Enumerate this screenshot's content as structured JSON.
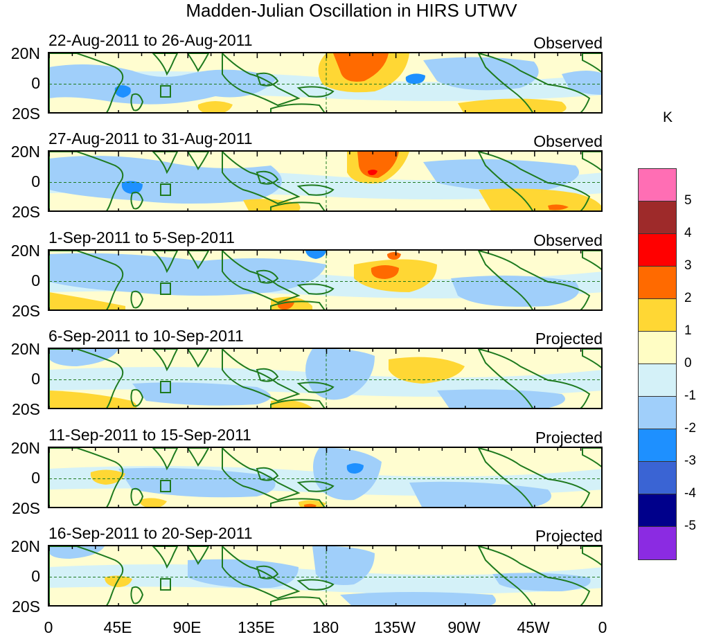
{
  "title": "Madden-Julian Oscillation in HIRS UTWV",
  "panels": [
    {
      "date": "22-Aug-2011 to 26-Aug-2011",
      "status": "Observed"
    },
    {
      "date": "27-Aug-2011 to 31-Aug-2011",
      "status": "Observed"
    },
    {
      "date": "1-Sep-2011 to 5-Sep-2011",
      "status": "Observed"
    },
    {
      "date": "6-Sep-2011 to 10-Sep-2011",
      "status": "Projected"
    },
    {
      "date": "11-Sep-2011 to 15-Sep-2011",
      "status": "Projected"
    },
    {
      "date": "16-Sep-2011 to 20-Sep-2011",
      "status": "Projected"
    }
  ],
  "lat_labels": {
    "north": "20N",
    "equator": "0",
    "south": "20S"
  },
  "lon_labels": [
    "0",
    "45E",
    "90E",
    "135E",
    "180",
    "135W",
    "90W",
    "45W",
    "0"
  ],
  "colorbar": {
    "unit": "K",
    "boxes_top_to_bottom": [
      {
        "color": "#ff6eb4"
      },
      {
        "color": "#9e2a2a"
      },
      {
        "color": "#ff0000"
      },
      {
        "color": "#ff6a00"
      },
      {
        "color": "#ffd734"
      },
      {
        "color": "#fffdc4"
      },
      {
        "color": "#d4f1f8"
      },
      {
        "color": "#a0cffa"
      },
      {
        "color": "#1e90ff"
      },
      {
        "color": "#3a64d4"
      },
      {
        "color": "#00008b"
      },
      {
        "color": "#8b2be2"
      }
    ],
    "tick_labels": [
      "5",
      "4",
      "3",
      "2",
      "1",
      "0",
      "-1",
      "-2",
      "-3",
      "-4",
      "-5"
    ]
  },
  "colors": {
    "land_outline": "#1e7a1e",
    "dashed_line": "#1e7a1e",
    "pos1": "#ffd734",
    "pos2": "#ff6a00",
    "pos3": "#ff0000",
    "neg0": "#d4f1f8",
    "neg1": "#a0cffa",
    "neg2": "#1e90ff",
    "background": "#fffdd0"
  }
}
